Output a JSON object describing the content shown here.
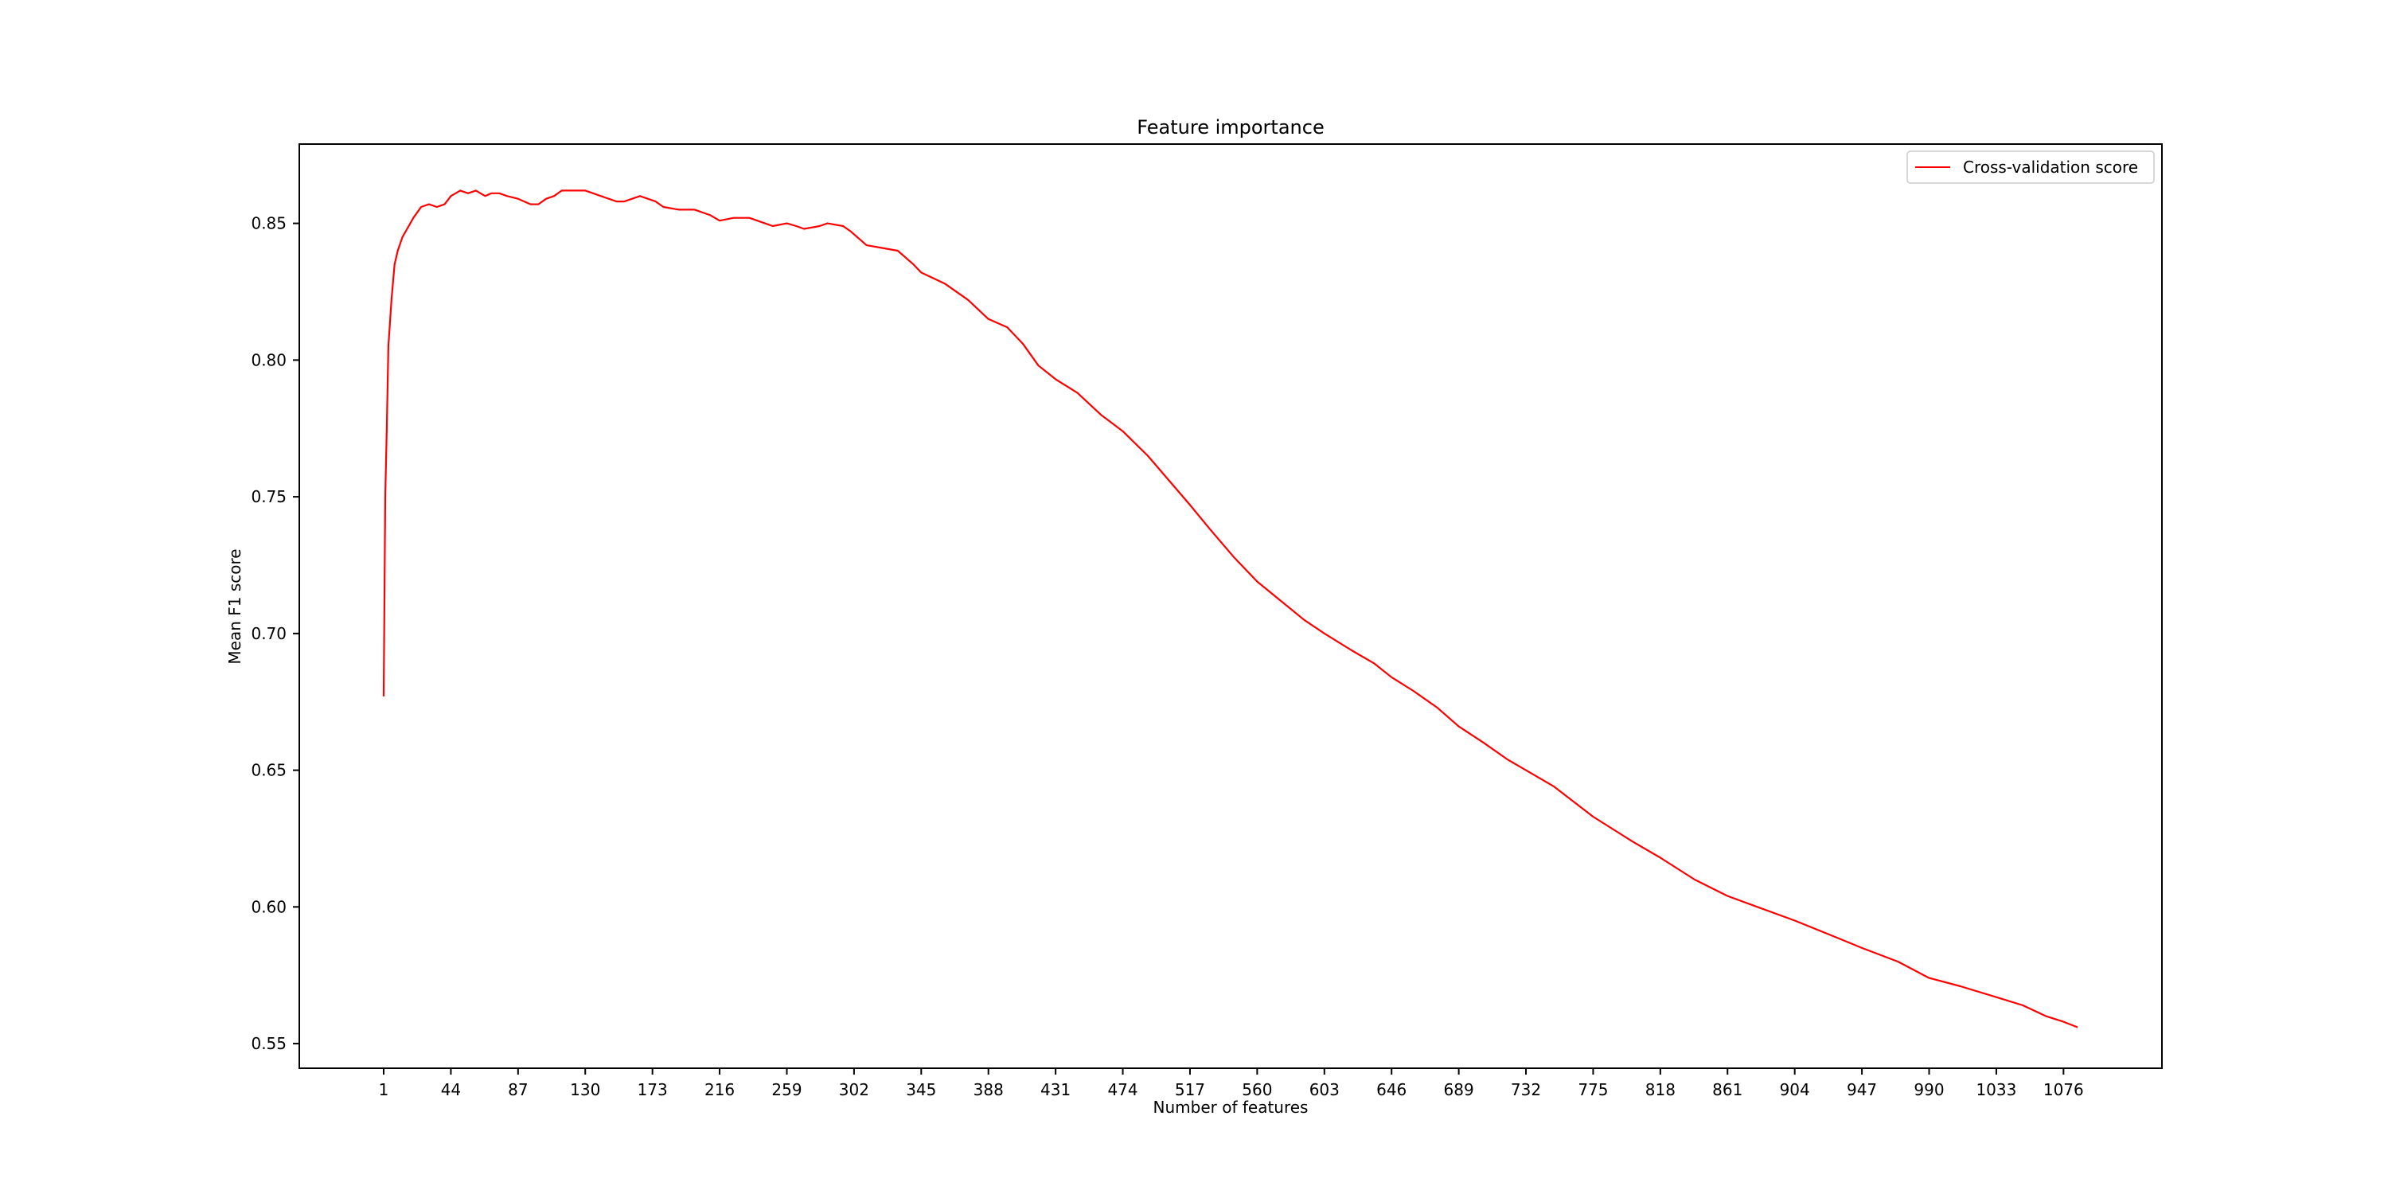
{
  "chart_data": {
    "type": "line",
    "title": "Feature importance",
    "xlabel": "Number of features",
    "ylabel": "Mean F1 score",
    "x_ticks": [
      1,
      44,
      87,
      130,
      173,
      216,
      259,
      302,
      345,
      388,
      431,
      474,
      517,
      560,
      603,
      646,
      689,
      732,
      775,
      818,
      861,
      904,
      947,
      990,
      1033,
      1076
    ],
    "y_ticks": [
      "0.55",
      "0.60",
      "0.65",
      "0.70",
      "0.75",
      "0.80",
      "0.85"
    ],
    "xlim": [
      -53,
      1139
    ],
    "ylim": [
      0.541,
      0.879
    ],
    "grid": false,
    "legend_position": "top-right",
    "colors": {
      "line": "#ff0000",
      "axes": "#000000",
      "legend_border": "#cccccc"
    },
    "series": [
      {
        "name": "Cross-validation score",
        "color": "#ff0000",
        "x": [
          1,
          2,
          3,
          4,
          6,
          8,
          10,
          13,
          16,
          20,
          25,
          30,
          35,
          40,
          44,
          50,
          55,
          60,
          66,
          70,
          75,
          80,
          87,
          95,
          100,
          105,
          110,
          115,
          120,
          125,
          130,
          135,
          140,
          145,
          150,
          155,
          160,
          165,
          170,
          175,
          180,
          190,
          200,
          210,
          216,
          225,
          235,
          245,
          250,
          259,
          265,
          270,
          280,
          285,
          295,
          300,
          310,
          320,
          330,
          340,
          345,
          360,
          375,
          388,
          400,
          410,
          420,
          431,
          445,
          460,
          474,
          490,
          505,
          517,
          530,
          545,
          560,
          575,
          590,
          603,
          620,
          635,
          646,
          660,
          675,
          689,
          705,
          720,
          732,
          750,
          775,
          800,
          818,
          840,
          861,
          880,
          904,
          930,
          947,
          970,
          990,
          1010,
          1033,
          1050,
          1065,
          1076,
          1085
        ],
        "values": [
          0.677,
          0.75,
          0.775,
          0.805,
          0.822,
          0.835,
          0.84,
          0.845,
          0.848,
          0.852,
          0.856,
          0.857,
          0.856,
          0.857,
          0.86,
          0.862,
          0.861,
          0.862,
          0.86,
          0.861,
          0.861,
          0.86,
          0.859,
          0.857,
          0.857,
          0.859,
          0.86,
          0.862,
          0.862,
          0.862,
          0.862,
          0.861,
          0.86,
          0.859,
          0.858,
          0.858,
          0.859,
          0.86,
          0.859,
          0.858,
          0.856,
          0.855,
          0.855,
          0.853,
          0.851,
          0.852,
          0.852,
          0.85,
          0.849,
          0.85,
          0.849,
          0.848,
          0.849,
          0.85,
          0.849,
          0.847,
          0.842,
          0.841,
          0.84,
          0.835,
          0.832,
          0.828,
          0.822,
          0.815,
          0.812,
          0.806,
          0.798,
          0.793,
          0.788,
          0.78,
          0.774,
          0.765,
          0.755,
          0.747,
          0.738,
          0.728,
          0.719,
          0.712,
          0.705,
          0.7,
          0.694,
          0.689,
          0.684,
          0.679,
          0.673,
          0.666,
          0.66,
          0.654,
          0.65,
          0.644,
          0.633,
          0.624,
          0.618,
          0.61,
          0.604,
          0.6,
          0.595,
          0.589,
          0.585,
          0.58,
          0.574,
          0.571,
          0.567,
          0.564,
          0.56,
          0.558,
          0.556
        ]
      }
    ]
  }
}
